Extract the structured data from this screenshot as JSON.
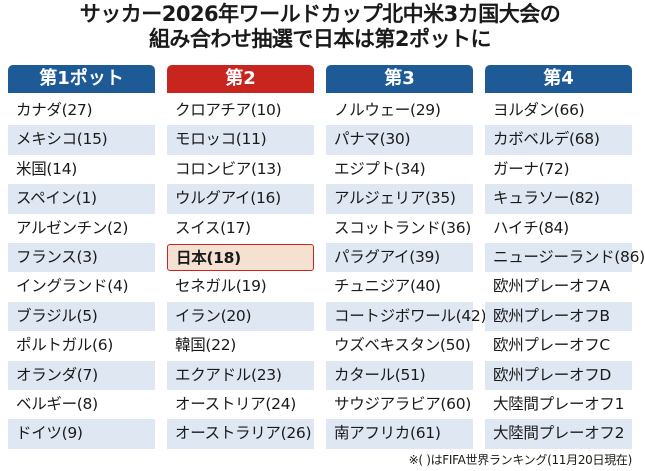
{
  "title": {
    "line1": "サッカー2026年ワールドカップ北中米3カ国大会の",
    "line2": "組み合わせ抽選で日本は第2ポットに"
  },
  "pots": [
    {
      "header": "第1ポット",
      "teams": [
        "カナダ(27)",
        "メキシコ(15)",
        "米国(14)",
        "スペイン(1)",
        "アルゼンチン(2)",
        "フランス(3)",
        "イングランド(4)",
        "ブラジル(5)",
        "ポルトガル(6)",
        "オランダ(7)",
        "ベルギー(8)",
        "ドイツ(9)"
      ]
    },
    {
      "header": "第2",
      "teams": [
        "クロアチア(10)",
        "モロッコ(11)",
        "コロンビア(13)",
        "ウルグアイ(16)",
        "スイス(17)",
        "日本(18)",
        "セネガル(19)",
        "イラン(20)",
        "韓国(22)",
        "エクアドル(23)",
        "オーストリア(24)",
        "オーストラリア(26)"
      ]
    },
    {
      "header": "第3",
      "teams": [
        "ノルウェー(29)",
        "パナマ(30)",
        "エジプト(34)",
        "アルジェリア(35)",
        "スコットランド(36)",
        "パラグアイ(39)",
        "チュニジア(40)",
        "コートジボワール(42)",
        "ウズベキスタン(50)",
        "カタール(51)",
        "サウジアラビア(60)",
        "南アフリカ(61)"
      ]
    },
    {
      "header": "第4",
      "teams": [
        "ヨルダン(66)",
        "カボベルデ(68)",
        "ガーナ(72)",
        "キュラソー(82)",
        "ハイチ(84)",
        "ニュージーランド(86)",
        "欧州プレーオフA",
        "欧州プレーオフB",
        "欧州プレーオフC",
        "欧州プレーオフD",
        "大陸間プレーオフ1",
        "大陸間プレーオフ2"
      ]
    }
  ],
  "note": "※( )はFIFA世界ランキング(11月20日現在)",
  "colors": {
    "pot_header_blue": "#1e5a96",
    "pot2_header_red": "#c8251f",
    "band": "#dfe7f3",
    "japan_highlight": "#f4e1d2"
  }
}
